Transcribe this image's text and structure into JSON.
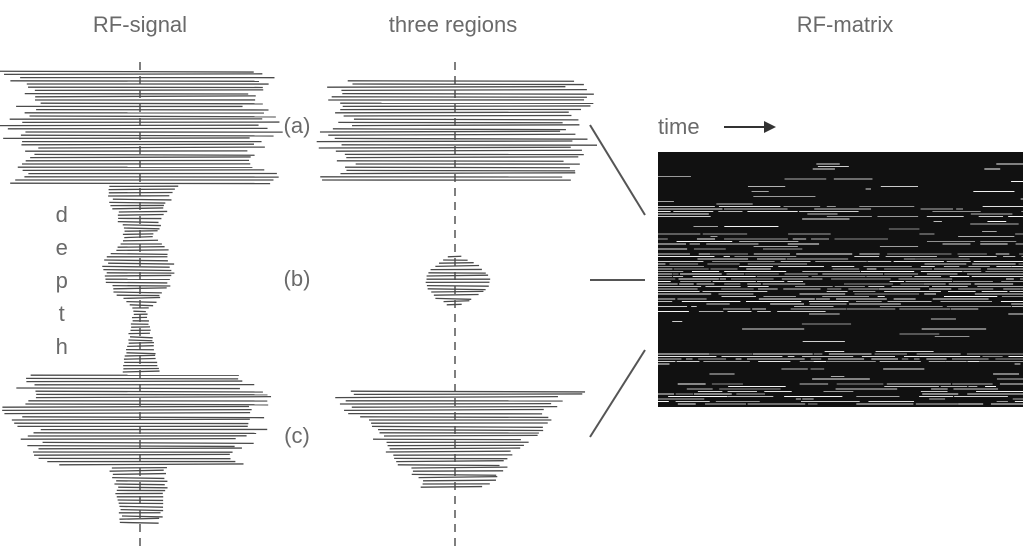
{
  "panels": [
    {
      "title": "RF-signal",
      "axis_label": "depth"
    },
    {
      "title": "three regions",
      "regions": [
        "(a)",
        "(b)",
        "(c)"
      ]
    },
    {
      "title": "RF-matrix",
      "axis_label": "time"
    }
  ]
}
